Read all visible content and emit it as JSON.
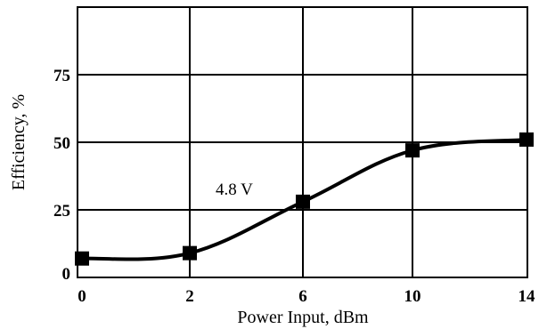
{
  "chart_data": {
    "type": "line",
    "title": "",
    "xlabel": "Power Input, dBm",
    "ylabel": "Efficiency, %",
    "x_categories": [
      "0",
      "2",
      "6",
      "10",
      "14"
    ],
    "y_ticks": [
      "0",
      "25",
      "50",
      "75"
    ],
    "ylim": [
      0,
      100
    ],
    "grid": true,
    "series": [
      {
        "name": "4.8 V",
        "color": "#000000",
        "marker": "square",
        "points": [
          {
            "x": "0",
            "y": 7
          },
          {
            "x": "2",
            "y": 9
          },
          {
            "x": "6",
            "y": 28
          },
          {
            "x": "10",
            "y": 47
          },
          {
            "x": "14",
            "y": 51
          }
        ]
      }
    ],
    "annotations": [
      {
        "text": "4.8 V"
      }
    ]
  }
}
